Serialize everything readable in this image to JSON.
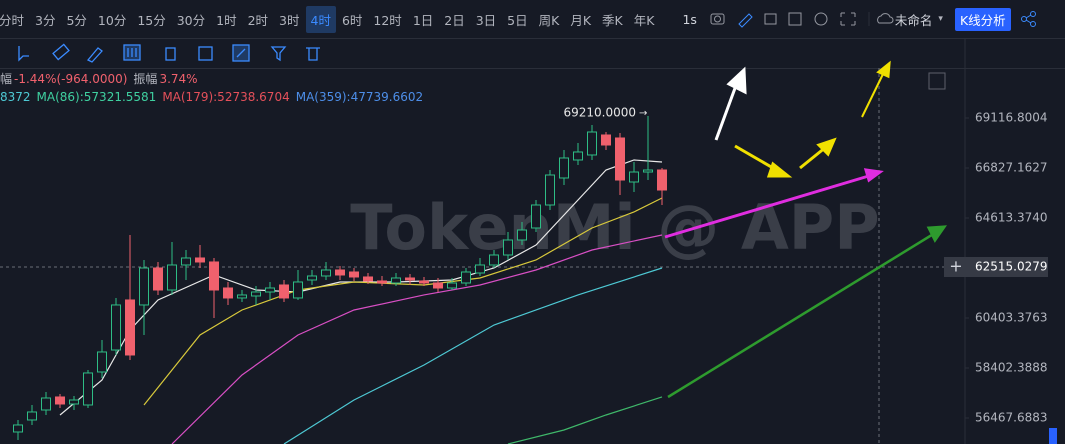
{
  "toolbar": {
    "intervals": [
      "分时",
      "3分",
      "5分",
      "10分",
      "15分",
      "30分",
      "1时",
      "2时",
      "3时",
      "4时",
      "6时",
      "12时",
      "1日",
      "2日",
      "3日",
      "5日",
      "周K",
      "月K",
      "季K",
      "年K"
    ],
    "speed": "1s",
    "layout_name": "未命名",
    "analysis_button": "K线分析"
  },
  "info": {
    "change_prefix": "幅",
    "change": "-1.44%(-964.0000)",
    "amplitude_label": "振幅",
    "amplitude": "3.74%",
    "ma_legend": [
      {
        "text": "8372",
        "color": "#4ec9d4"
      },
      {
        "text": "MA(86):57321.5581",
        "color": "#3fd0a0"
      },
      {
        "text": "MA(179):52738.6704",
        "color": "#e4505a"
      },
      {
        "text": "MA(359):47739.6602",
        "color": "#4d8ee8"
      }
    ]
  },
  "chart_data": {
    "type": "candlestick",
    "watermark": "TokenMi @ APP",
    "ylog": true,
    "ylim": [
      55487,
      71485
    ],
    "yticks": [
      56467.6883,
      58402.3888,
      60403.3763,
      {
        "value": 64613.374,
        "label": "64613.3740"
      },
      66827.1627,
      69116.8004
    ],
    "crosshair": 62515.0279,
    "high_label": "69210.0000",
    "up_color": "#2ebd85",
    "down_color": "#f0616d",
    "open": [
      55938,
      56392,
      56773,
      57273,
      57003,
      56965,
      58246,
      59115,
      61141,
      60936,
      62473,
      61554,
      62600,
      62896,
      62727,
      61637,
      61224,
      61306,
      61471,
      61762,
      61224,
      61970,
      62138,
      62389,
      62305,
      62096,
      61928,
      61845,
      62054,
      61928,
      61845,
      61637,
      61845,
      62263,
      62600,
      63023,
      63663,
      64180,
      65182,
      66379,
      67189,
      67416,
      68330,
      68192,
      66200,
      66647,
      66737
    ],
    "high": [
      56392,
      56965,
      57466,
      57389,
      57311,
      58324,
      59515,
      61224,
      63878,
      62811,
      62727,
      63577,
      63235,
      63449,
      62896,
      61887,
      61554,
      61720,
      61887,
      61970,
      62389,
      62389,
      62727,
      62558,
      62473,
      62263,
      62138,
      62263,
      62221,
      62096,
      62054,
      62054,
      62473,
      62896,
      63235,
      64007,
      64439,
      65402,
      66737,
      67643,
      67963,
      68792,
      68468,
      68422,
      67099,
      69210,
      66828
    ],
    "low": [
      55637,
      56203,
      56582,
      56850,
      56773,
      56850,
      58010,
      58917,
      58718,
      59716,
      61348,
      61348,
      61970,
      62473,
      60404,
      60936,
      61059,
      60936,
      61141,
      61059,
      61141,
      61762,
      61970,
      61970,
      61928,
      61804,
      61720,
      61720,
      61762,
      61720,
      61471,
      61554,
      61720,
      62138,
      62473,
      62811,
      63449,
      64007,
      64963,
      66067,
      66963,
      67189,
      67643,
      65623,
      65756,
      66289,
      65182
    ],
    "close": [
      56203,
      56697,
      57234,
      57003,
      57157,
      58207,
      59036,
      60936,
      58917,
      62473,
      61554,
      62600,
      62896,
      62727,
      61554,
      61224,
      61348,
      61471,
      61637,
      61224,
      61887,
      62138,
      62389,
      62180,
      62096,
      61928,
      61845,
      62054,
      61970,
      61845,
      61637,
      61845,
      62305,
      62600,
      63023,
      63663,
      64093,
      65182,
      66513,
      67280,
      67552,
      68468,
      67871,
      66289,
      66647,
      66737,
      65844
    ],
    "ma_lines": [
      {
        "color": "#e8e8e8",
        "x": [
          3,
          6,
          8,
          10,
          14,
          17,
          20,
          23,
          27,
          31,
          34,
          37,
          40,
          42,
          44,
          46
        ],
        "values": [
          56582,
          57932,
          59917,
          61141,
          62180,
          61554,
          61471,
          61887,
          61887,
          61970,
          62473,
          63449,
          65402,
          66737,
          67189,
          67099
        ]
      },
      {
        "color": "#d8c93c",
        "x": [
          9,
          13,
          16,
          20,
          24,
          29,
          33,
          37,
          41,
          44,
          46
        ],
        "values": [
          56965,
          59716,
          60730,
          61554,
          61887,
          61762,
          62054,
          62811,
          64180,
          64876,
          65490
        ]
      },
      {
        "color": "#d84fc4",
        "x": [
          11,
          16,
          20,
          24,
          29,
          33,
          37,
          41,
          46
        ],
        "values": [
          55487,
          58128,
          59716,
          60730,
          61348,
          61762,
          62389,
          63235,
          63878
        ]
      },
      {
        "color": "#4ec9d4",
        "x": [
          19,
          24,
          29,
          34,
          40,
          46
        ],
        "values": [
          55487,
          57157,
          58521,
          60119,
          61348,
          62473
        ]
      },
      {
        "color": "#3fb86a",
        "x": [
          35,
          39,
          42,
          46
        ],
        "values": [
          55487,
          56013,
          56582,
          57273
        ]
      }
    ]
  }
}
